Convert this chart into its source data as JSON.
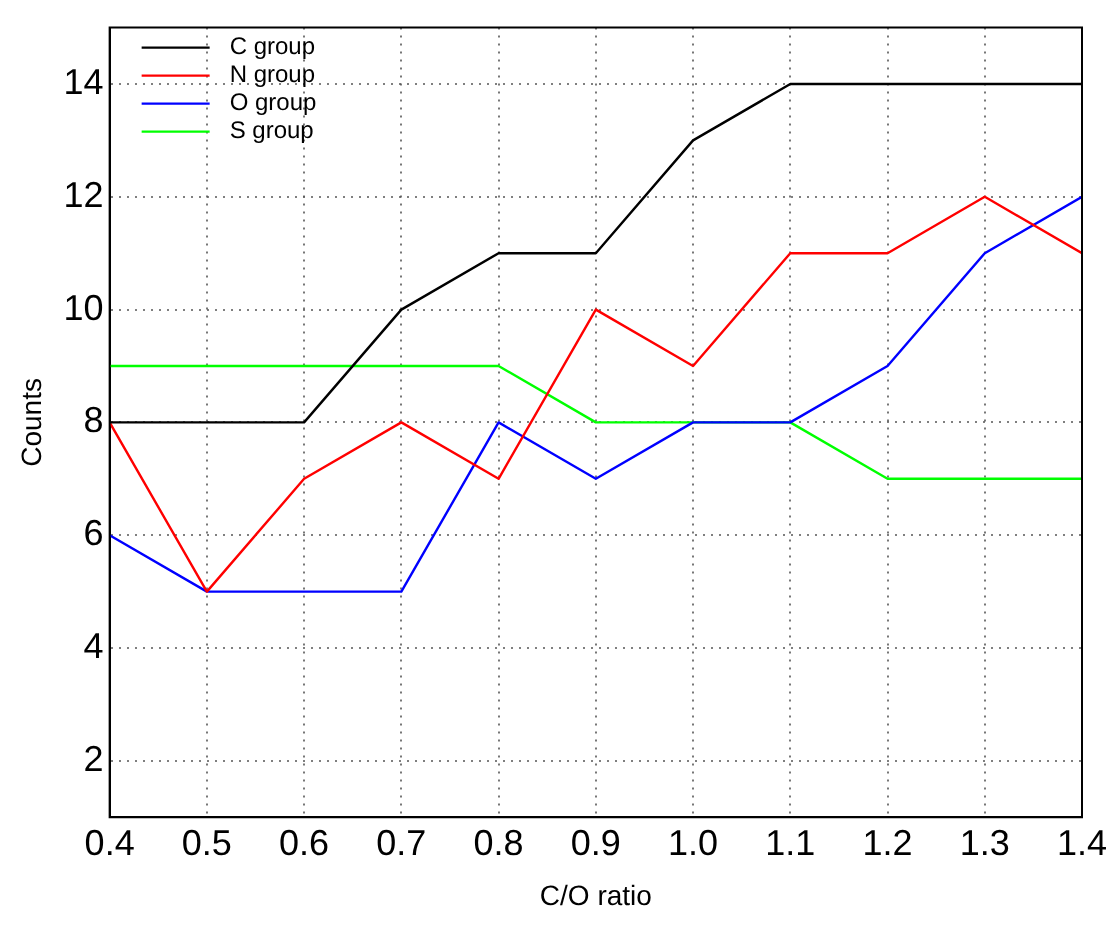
{
  "chart_data": {
    "type": "line",
    "xlabel": "C/O ratio",
    "ylabel": "Counts",
    "x": [
      0.4,
      0.5,
      0.6,
      0.7,
      0.8,
      0.9,
      1.0,
      1.1,
      1.2,
      1.3,
      1.4
    ],
    "series": [
      {
        "name": "C group",
        "color": "#000000",
        "values": [
          8,
          8,
          8,
          10,
          11,
          11,
          13,
          14,
          14,
          14,
          14
        ]
      },
      {
        "name": "N group",
        "color": "#ff0000",
        "values": [
          8,
          5,
          7,
          8,
          7,
          10,
          9,
          11,
          11,
          12,
          11
        ]
      },
      {
        "name": "O group",
        "color": "#0000ff",
        "values": [
          6,
          5,
          5,
          5,
          8,
          7,
          8,
          8,
          9,
          11,
          12
        ]
      },
      {
        "name": "S group",
        "color": "#00ff00",
        "values": [
          9,
          9,
          9,
          9,
          9,
          8,
          8,
          8,
          7,
          7,
          7
        ]
      }
    ],
    "xlim": [
      0.4,
      1.4
    ],
    "xticks": [
      0.4,
      0.5,
      0.6,
      0.7,
      0.8,
      0.9,
      {
        "value": 1,
        "label": "1.0"
      },
      1.1,
      1.2,
      1.3,
      1.4
    ],
    "ylim": [
      1,
      15
    ],
    "yticks": [
      2,
      4,
      6,
      8,
      10,
      12,
      14
    ],
    "grid": true,
    "legend": "top left",
    "marker": "none",
    "line_style": "solid"
  }
}
